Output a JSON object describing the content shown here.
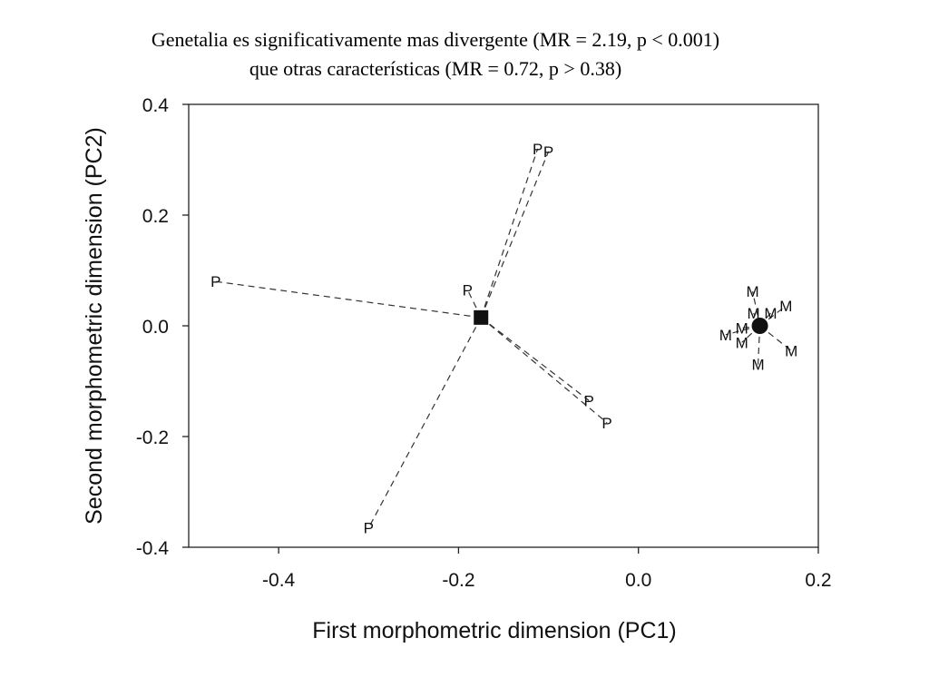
{
  "title": {
    "line1": "Genetalia es significativamente mas divergente (MR = 2.19, p < 0.001)",
    "line2": "que otras características (MR = 0.72, p > 0.38)"
  },
  "chart_data": {
    "type": "scatter",
    "xlabel": "First morphometric dimension (PC1)",
    "ylabel": "Second morphometric dimension (PC2)",
    "xlim": [
      -0.5,
      0.2
    ],
    "ylim": [
      -0.4,
      0.4
    ],
    "xticks": [
      -0.4,
      -0.2,
      0.0,
      0.2
    ],
    "yticks": [
      0.4,
      0.2,
      0.0,
      -0.2,
      -0.4
    ],
    "xtick_labels": [
      "-0.4",
      "-0.2",
      "0.0",
      "0.2"
    ],
    "ytick_labels": [
      "0.4",
      "0.2",
      "0.0",
      "-0.2",
      "-0.4"
    ],
    "grid": false,
    "centroids": [
      {
        "label": "P",
        "marker": "square",
        "x": -0.175,
        "y": 0.015
      },
      {
        "label": "M",
        "marker": "circle",
        "x": 0.135,
        "y": 0.0
      }
    ],
    "series": [
      {
        "label": "P",
        "points": [
          {
            "x": -0.112,
            "y": 0.32
          },
          {
            "x": -0.1,
            "y": 0.315
          },
          {
            "x": -0.47,
            "y": 0.08
          },
          {
            "x": -0.19,
            "y": 0.065
          },
          {
            "x": -0.055,
            "y": -0.135
          },
          {
            "x": -0.035,
            "y": -0.175
          },
          {
            "x": -0.3,
            "y": -0.365
          }
        ]
      },
      {
        "label": "M",
        "points": [
          {
            "x": 0.127,
            "y": 0.062
          },
          {
            "x": 0.164,
            "y": 0.036
          },
          {
            "x": 0.128,
            "y": 0.023
          },
          {
            "x": 0.147,
            "y": 0.023
          },
          {
            "x": 0.097,
            "y": -0.016
          },
          {
            "x": 0.115,
            "y": -0.004
          },
          {
            "x": 0.115,
            "y": -0.03
          },
          {
            "x": 0.17,
            "y": -0.045
          },
          {
            "x": 0.133,
            "y": -0.07
          }
        ]
      }
    ]
  }
}
